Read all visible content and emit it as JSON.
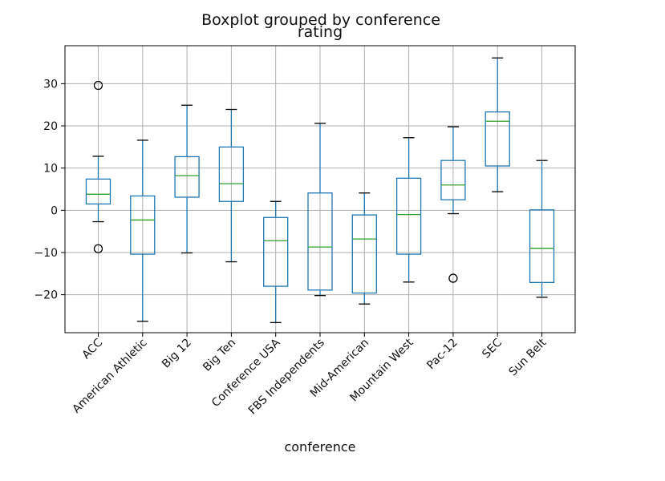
{
  "chart_data": {
    "type": "box",
    "suptitle": "Boxplot grouped by conference",
    "title": "rating",
    "xlabel": "conference",
    "ylabel": "",
    "ylim": [
      -29,
      39
    ],
    "yticks": [
      -20,
      -10,
      0,
      10,
      20,
      30
    ],
    "ytick_labels": [
      "−20",
      "−10",
      "0",
      "10",
      "20",
      "30"
    ],
    "grid": true,
    "categories": [
      "ACC",
      "American Athletic",
      "Big 12",
      "Big Ten",
      "Conference USA",
      "FBS Independents",
      "Mid-American",
      "Mountain West",
      "Pac-12",
      "SEC",
      "Sun Belt"
    ],
    "boxes": [
      {
        "whisker_low": -2.7,
        "q1": 1.5,
        "median": 3.8,
        "q3": 7.4,
        "whisker_high": 12.8,
        "outliers": [
          29.6,
          -9.1
        ]
      },
      {
        "whisker_low": -26.3,
        "q1": -10.4,
        "median": -2.3,
        "q3": 3.4,
        "whisker_high": 16.6,
        "outliers": []
      },
      {
        "whisker_low": -10.1,
        "q1": 3.1,
        "median": 8.2,
        "q3": 12.7,
        "whisker_high": 24.9,
        "outliers": []
      },
      {
        "whisker_low": -12.2,
        "q1": 2.1,
        "median": 6.3,
        "q3": 15.0,
        "whisker_high": 23.9,
        "outliers": []
      },
      {
        "whisker_low": -26.6,
        "q1": -18.0,
        "median": -7.2,
        "q3": -1.7,
        "whisker_high": 2.1,
        "outliers": []
      },
      {
        "whisker_low": -20.2,
        "q1": -18.9,
        "median": -8.7,
        "q3": 4.1,
        "whisker_high": 20.6,
        "outliers": []
      },
      {
        "whisker_low": -22.2,
        "q1": -19.6,
        "median": -6.8,
        "q3": -1.1,
        "whisker_high": 4.1,
        "outliers": []
      },
      {
        "whisker_low": -17.0,
        "q1": -10.4,
        "median": -1.0,
        "q3": 7.6,
        "whisker_high": 17.2,
        "outliers": []
      },
      {
        "whisker_low": -0.8,
        "q1": 2.5,
        "median": 6.0,
        "q3": 11.8,
        "whisker_high": 19.8,
        "outliers": [
          -16.1
        ]
      },
      {
        "whisker_low": 4.4,
        "q1": 10.5,
        "median": 21.1,
        "q3": 23.3,
        "whisker_high": 36.1,
        "outliers": []
      },
      {
        "whisker_low": -20.6,
        "q1": -17.1,
        "median": -9.0,
        "q3": 0.1,
        "whisker_high": 11.8,
        "outliers": []
      }
    ],
    "colors": {
      "box": "#1f77b4",
      "median": "#2ca02c",
      "whisker_cap": "#000000",
      "grid": "#b0b0b0",
      "outlier": "#000000"
    }
  }
}
